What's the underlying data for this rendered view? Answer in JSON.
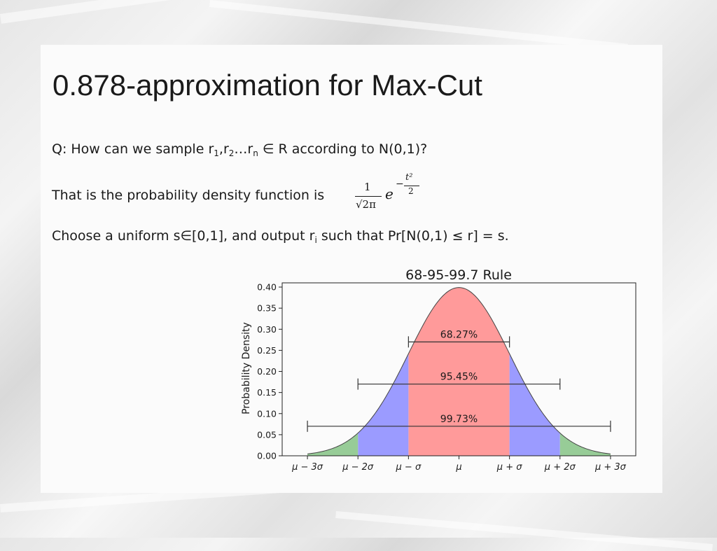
{
  "slide": {
    "title": "0.878-approximation for Max-Cut",
    "line1": {
      "prefix": "Q: How can we sample r",
      "sub1": "1",
      "mid1": ",r",
      "sub2": "2",
      "mid2": "…r",
      "subn": "n",
      "suffix": " ∈ R according to N(0,1)?"
    },
    "line2": {
      "text": "That is the probability density function is"
    },
    "formula": {
      "numerator": "1",
      "denominator": "√2π",
      "base": "e",
      "exp_sign": "−",
      "exp_numerator": "t²",
      "exp_denominator": "2"
    },
    "line3": {
      "prefix": "Choose a uniform s∈[0,1], and output r",
      "sub": "i",
      "suffix": " such that Pr[N(0,1) ≤ r] = s."
    }
  },
  "chart_data": {
    "type": "area",
    "title": "68-95-99.7 Rule",
    "xlabel": "",
    "ylabel": "Probability Density",
    "xlim": [
      -3,
      3
    ],
    "ylim": [
      0,
      0.4
    ],
    "yticks": [
      0.0,
      0.05,
      0.1,
      0.15,
      0.2,
      0.25,
      0.3,
      0.35,
      0.4
    ],
    "ytick_labels": [
      "0.00",
      "0.05",
      "0.10",
      "0.15",
      "0.20",
      "0.25",
      "0.30",
      "0.35",
      "0.40"
    ],
    "xticks": [
      -3,
      -2,
      -1,
      0,
      1,
      2,
      3
    ],
    "xtick_labels": [
      "μ − 3σ",
      "μ − 2σ",
      "μ − σ",
      "μ",
      "μ + σ",
      "μ + 2σ",
      "μ + 3σ"
    ],
    "curve": "standard normal density",
    "regions": [
      {
        "from": -1,
        "to": 1,
        "color": "#ff9a9a"
      },
      {
        "from": -2,
        "to": -1,
        "color": "#9b9bff"
      },
      {
        "from": 1,
        "to": 2,
        "color": "#9b9bff"
      },
      {
        "from": -3,
        "to": -2,
        "color": "#97cc97"
      },
      {
        "from": 2,
        "to": 3,
        "color": "#97cc97"
      }
    ],
    "intervals": [
      {
        "from": -1,
        "to": 1,
        "y": 0.27,
        "label": "68.27%"
      },
      {
        "from": -2,
        "to": 2,
        "y": 0.17,
        "label": "95.45%"
      },
      {
        "from": -3,
        "to": 3,
        "y": 0.07,
        "label": "99.73%"
      }
    ],
    "grid": false
  }
}
